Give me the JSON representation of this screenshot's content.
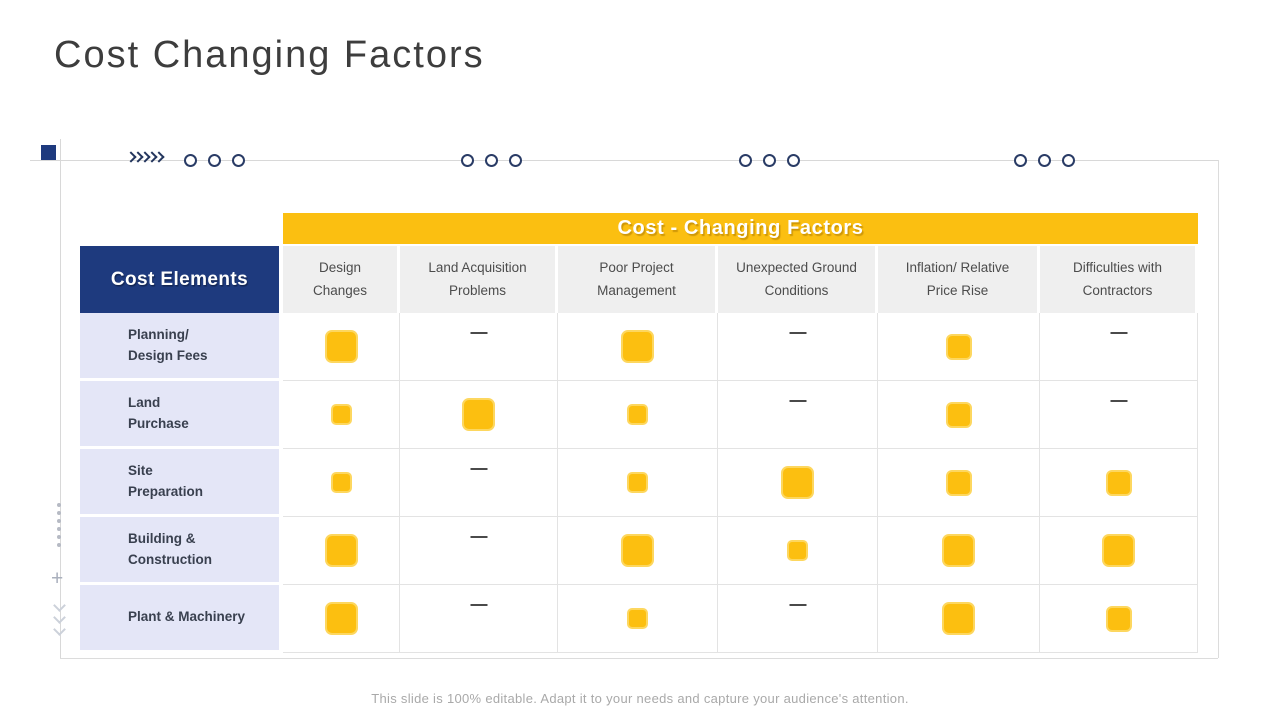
{
  "slide": {
    "title": "Cost Changing Factors",
    "footer_note": "This slide is 100% editable. Adapt it to your needs and capture your audience's attention."
  },
  "matrix": {
    "banner_title": "Cost - Changing Factors",
    "row_header_title": "Cost Elements",
    "columns": [
      "Design Changes",
      "Land Acquisition Problems",
      "Poor Project Management",
      "Unexpected Ground Conditions",
      "Inflation/ Relative Price Rise",
      "Difficulties with Contractors"
    ],
    "rows": [
      {
        "label": "Planning/ Design Fees",
        "label_lines": [
          "Planning/",
          "Design Fees"
        ],
        "cells": [
          "large",
          "none",
          "large",
          "none",
          "medium",
          "none"
        ]
      },
      {
        "label": "Land Purchase",
        "label_lines": [
          "Land",
          "Purchase"
        ],
        "cells": [
          "small",
          "large",
          "small",
          "none",
          "medium",
          "none"
        ]
      },
      {
        "label": "Site Preparation",
        "label_lines": [
          "Site",
          "Preparation"
        ],
        "cells": [
          "small",
          "none",
          "small",
          "large",
          "medium",
          "medium"
        ]
      },
      {
        "label": "Building & Construction",
        "label_lines": [
          "Building &",
          "Construction"
        ],
        "cells": [
          "large",
          "none",
          "large",
          "small",
          "large",
          "large"
        ]
      },
      {
        "label": "Plant & Machinery",
        "label_lines": [
          "Plant & Machinery"
        ],
        "cells": [
          "large",
          "none",
          "small",
          "none",
          "large",
          "medium"
        ]
      }
    ]
  },
  "chart_data": {
    "type": "heatmap",
    "title": "Cost - Changing Factors",
    "x_categories": [
      "Design Changes",
      "Land Acquisition Problems",
      "Poor Project Management",
      "Unexpected Ground Conditions",
      "Inflation/ Relative Price Rise",
      "Difficulties with Contractors"
    ],
    "y_categories": [
      "Planning/ Design Fees",
      "Land Purchase",
      "Site Preparation",
      "Building & Construction",
      "Plant & Machinery"
    ],
    "value_scale": {
      "0": "dash (no marker)",
      "1": "small yellow square",
      "2": "medium yellow square",
      "3": "large yellow square"
    },
    "values": [
      [
        3,
        0,
        3,
        0,
        2,
        0
      ],
      [
        1,
        3,
        1,
        0,
        2,
        0
      ],
      [
        1,
        0,
        1,
        3,
        2,
        2
      ],
      [
        3,
        0,
        3,
        1,
        3,
        3
      ],
      [
        3,
        0,
        1,
        0,
        3,
        2
      ]
    ],
    "legend_position": "none",
    "grid": true
  },
  "colors": {
    "accent_yellow": "#FBBF11",
    "square_yellow": "#FCBF10",
    "navy": "#1E3A7E",
    "row_label_bg": "#E4E6F7",
    "column_header_bg": "#EFEFEF",
    "grid_line": "#E3E3E3",
    "title_text": "#3D3D3D",
    "footer_text": "#A9A9A9"
  },
  "icons": {
    "impact-square": "rounded yellow square",
    "dash-icon": "—",
    "circle-marker": "○",
    "chevron-right-icon": "»",
    "chevron-down-icon": "⌄",
    "plus-icon": "+",
    "dot-icon": "•"
  }
}
